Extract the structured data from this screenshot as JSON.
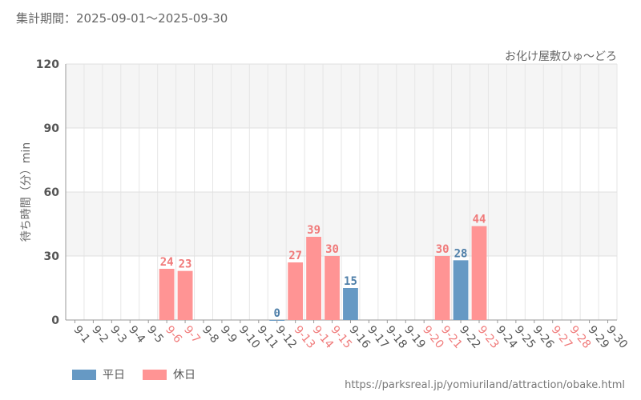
{
  "header": {
    "period": "集計期間：2025-09-01〜2025-09-30",
    "attraction": "お化け屋敷ひゅ〜どろ"
  },
  "footer": {
    "source": "https://parksreal.jp/yomiuriland/attraction/obake.html"
  },
  "colors": {
    "weekday": "#6699c4",
    "holiday": "#ff9494",
    "weekday_text": "#4d7ea8",
    "holiday_text": "#f07a7a"
  },
  "chart_data": {
    "type": "bar",
    "ylabel": "待ち時間（分）min",
    "ylim": [
      0,
      120
    ],
    "yticks": [
      0,
      30,
      60,
      90,
      120
    ],
    "grid": true,
    "legend_position": "bottom-left",
    "legend": [
      {
        "key": "weekday",
        "label": "平日"
      },
      {
        "key": "holiday",
        "label": "休日"
      }
    ],
    "categories": [
      "9-1",
      "9-2",
      "9-3",
      "9-4",
      "9-5",
      "9-6",
      "9-7",
      "9-8",
      "9-9",
      "9-10",
      "9-11",
      "9-12",
      "9-13",
      "9-14",
      "9-15",
      "9-16",
      "9-17",
      "9-18",
      "9-19",
      "9-20",
      "9-21",
      "9-22",
      "9-23",
      "9-24",
      "9-25",
      "9-26",
      "9-27",
      "9-28",
      "9-29",
      "9-30"
    ],
    "day_type": [
      "weekday",
      "weekday",
      "weekday",
      "weekday",
      "weekday",
      "holiday",
      "holiday",
      "weekday",
      "weekday",
      "weekday",
      "weekday",
      "weekday",
      "holiday",
      "holiday",
      "holiday",
      "weekday",
      "weekday",
      "weekday",
      "weekday",
      "holiday",
      "holiday",
      "weekday",
      "holiday",
      "weekday",
      "weekday",
      "weekday",
      "holiday",
      "holiday",
      "weekday",
      "weekday"
    ],
    "values": [
      null,
      null,
      null,
      null,
      null,
      24,
      23,
      null,
      null,
      null,
      null,
      0,
      27,
      39,
      30,
      15,
      null,
      null,
      null,
      null,
      30,
      28,
      44,
      null,
      null,
      null,
      null,
      null,
      null,
      null
    ]
  }
}
